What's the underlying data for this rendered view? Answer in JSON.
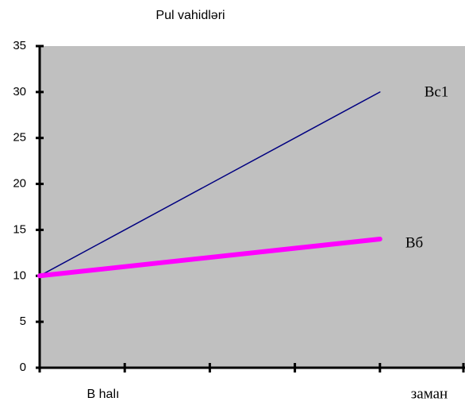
{
  "chart_data": {
    "type": "line",
    "title": "Pul vahidləri",
    "x": [
      0,
      4
    ],
    "series": [
      {
        "name": "Bc1",
        "color": "#000080",
        "values": [
          10,
          30
        ]
      },
      {
        "name": "Bб",
        "color": "#ff00ff",
        "values": [
          10,
          14
        ]
      }
    ],
    "xlim": [
      0,
      5
    ],
    "xticks": [
      0,
      1,
      2,
      3,
      4,
      5
    ],
    "ylim": [
      0,
      35
    ],
    "yticks": [
      0,
      5,
      10,
      15,
      20,
      25,
      30,
      35
    ],
    "x_category_label": "B halı",
    "xlabel": "заман",
    "plot_background": "#c0c0c0"
  }
}
